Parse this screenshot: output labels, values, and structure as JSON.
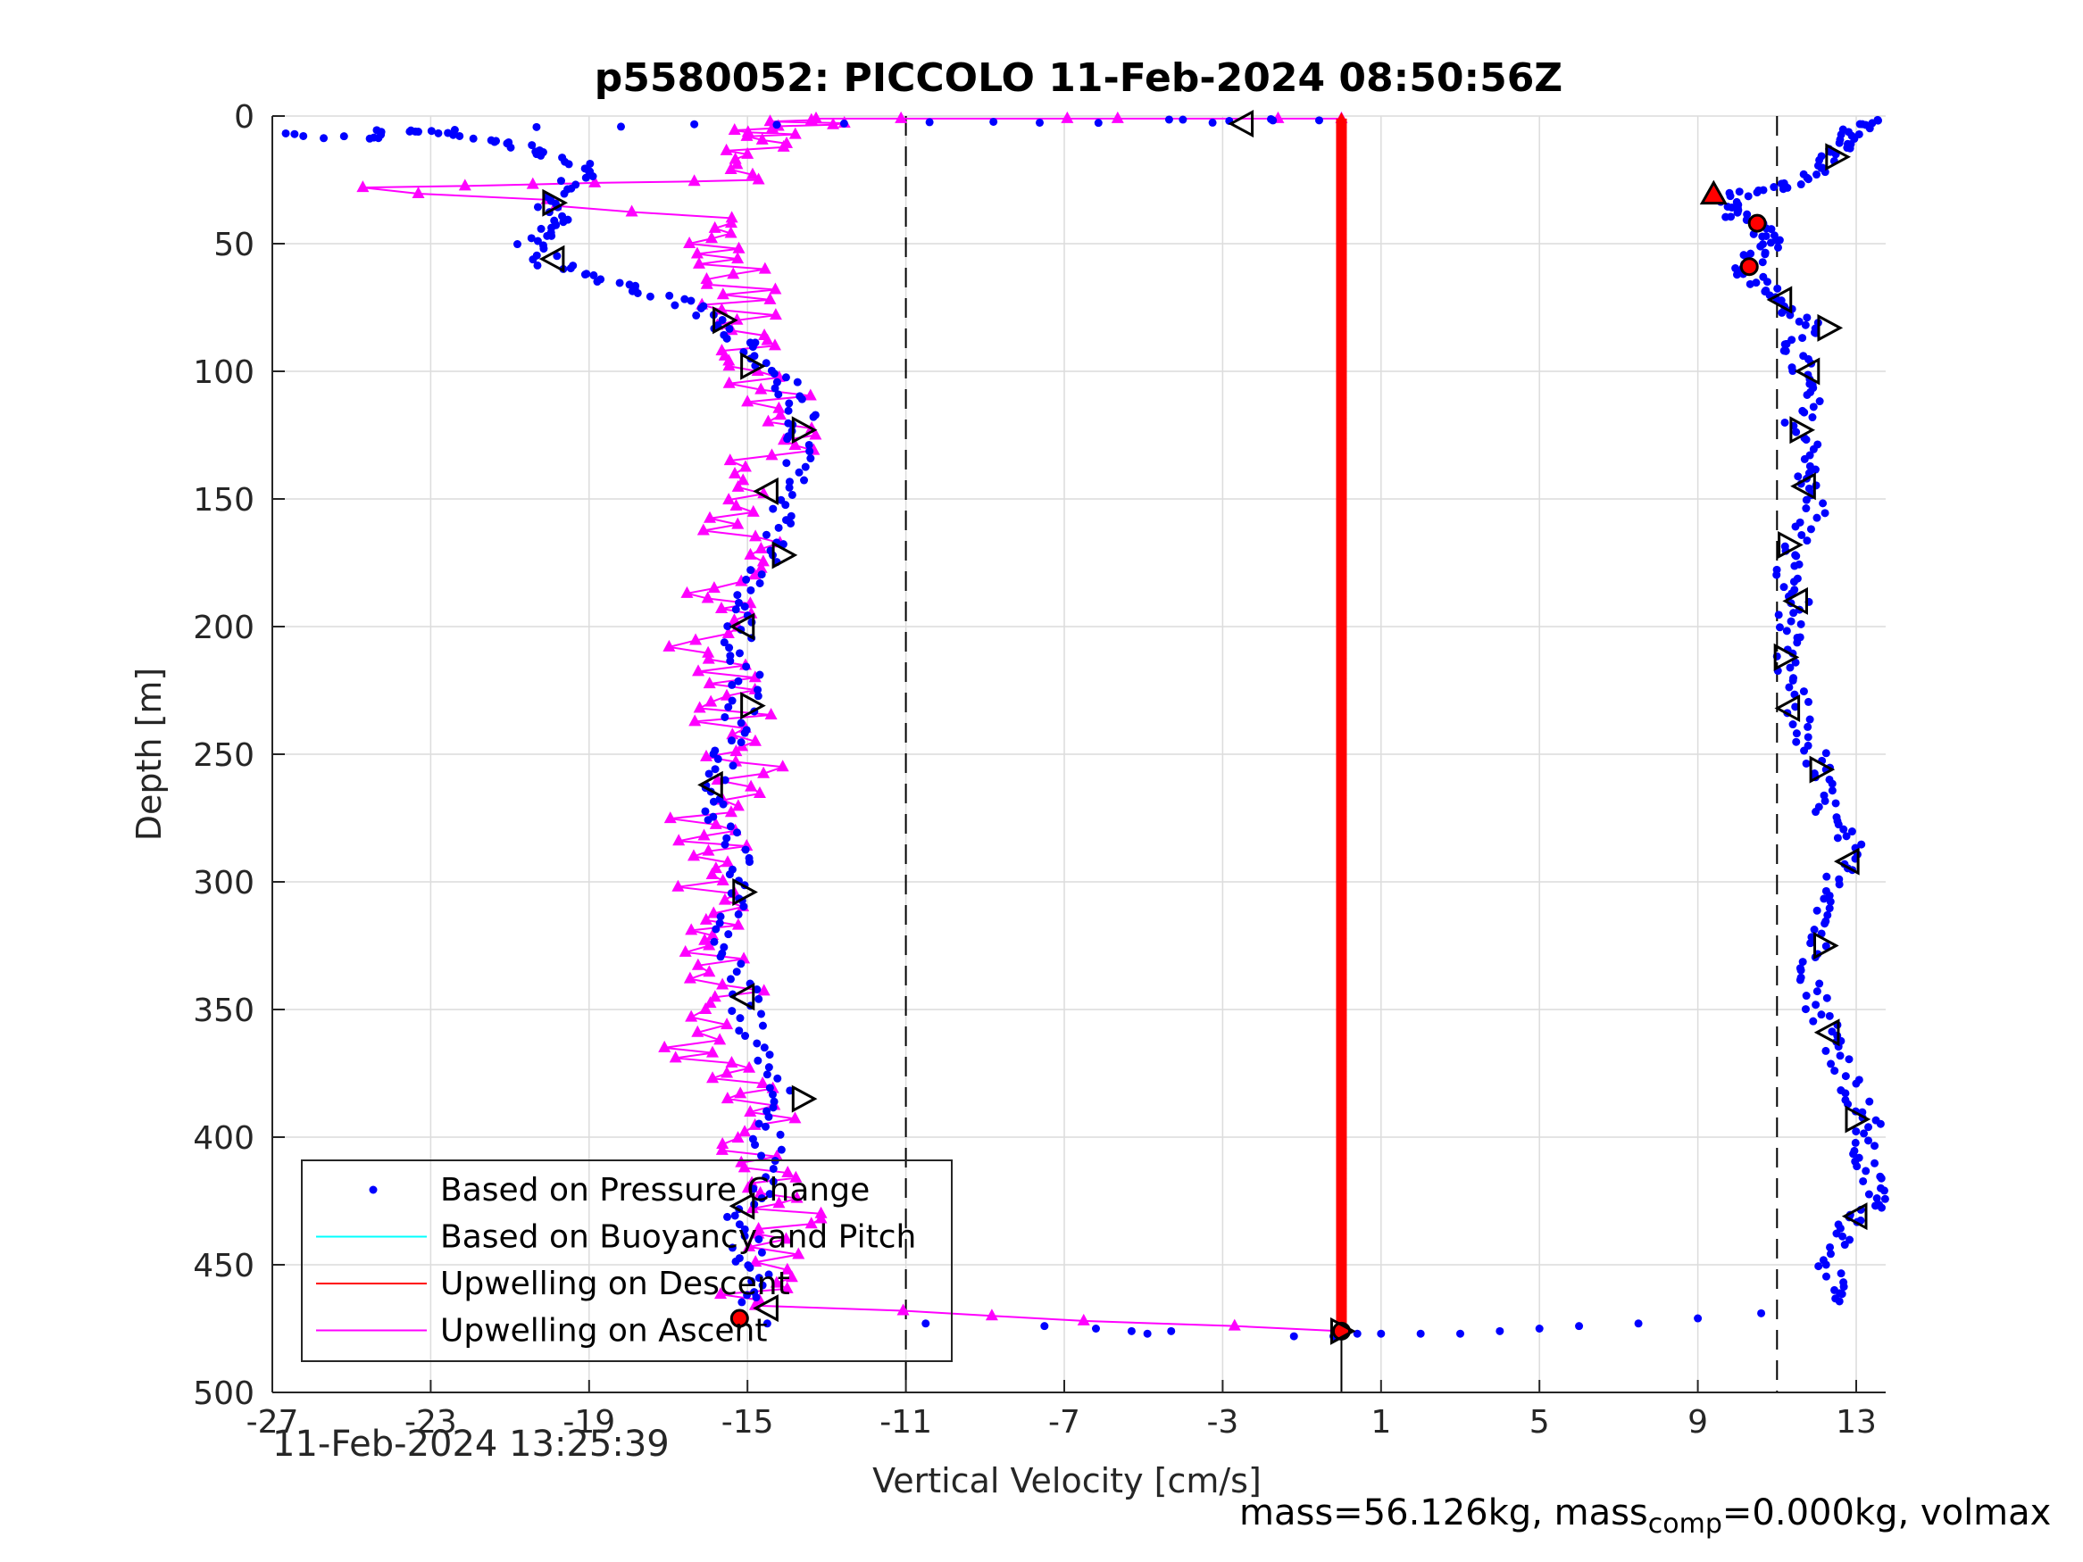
{
  "chart_data": {
    "type": "scatter",
    "title": "p5580052: PICCOLO 11-Feb-2024 08:50:56Z",
    "xlabel": "Vertical Velocity [cm/s]",
    "ylabel": "Depth [m]",
    "xlim": [
      -27,
      14
    ],
    "ylim": [
      0,
      500
    ],
    "y_reversed": true,
    "xticks": [
      -27,
      -23,
      -19,
      -15,
      -11,
      -7,
      -3,
      1,
      5,
      9,
      13
    ],
    "yticks": [
      0,
      50,
      100,
      150,
      200,
      250,
      300,
      350,
      400,
      450,
      500
    ],
    "grid": true,
    "legend_location": "bottom-left",
    "legend": [
      {
        "label": "Based on Pressure Change",
        "color": "#0000ff",
        "marker": "dot"
      },
      {
        "label": "Based on Buoyancy and Pitch",
        "color": "#00ffff",
        "marker": "line"
      },
      {
        "label": "Upwelling on Descent",
        "color": "#ff0000",
        "marker": "line"
      },
      {
        "label": "Upwelling on Ascent",
        "color": "#ff00ff",
        "marker": "line"
      }
    ],
    "reference_lines_x": [
      -11,
      11
    ],
    "series": [
      {
        "name": "Based on Pressure Change",
        "color": "#0000ff",
        "descent_trace": [
          [
            13.4,
            1
          ],
          [
            13.0,
            5
          ],
          [
            12.7,
            10
          ],
          [
            12.5,
            15
          ],
          [
            12.0,
            22
          ],
          [
            11.3,
            27
          ],
          [
            10.2,
            30
          ],
          [
            9.6,
            35
          ],
          [
            10.1,
            40
          ],
          [
            10.7,
            45
          ],
          [
            11.0,
            50
          ],
          [
            10.5,
            55
          ],
          [
            10.2,
            62
          ],
          [
            10.8,
            68
          ],
          [
            11.2,
            75
          ],
          [
            11.8,
            82
          ],
          [
            11.4,
            90
          ],
          [
            11.6,
            100
          ],
          [
            11.8,
            110
          ],
          [
            11.5,
            122
          ],
          [
            12.0,
            135
          ],
          [
            11.7,
            145
          ],
          [
            12.0,
            155
          ],
          [
            11.4,
            168
          ],
          [
            11.2,
            180
          ],
          [
            11.5,
            190
          ],
          [
            11.3,
            200
          ],
          [
            11.1,
            212
          ],
          [
            11.4,
            225
          ],
          [
            11.6,
            240
          ],
          [
            12.0,
            252
          ],
          [
            12.1,
            262
          ],
          [
            12.3,
            275
          ],
          [
            12.8,
            285
          ],
          [
            12.6,
            298
          ],
          [
            12.4,
            310
          ],
          [
            12.0,
            322
          ],
          [
            11.9,
            335
          ],
          [
            12.0,
            348
          ],
          [
            12.4,
            360
          ],
          [
            12.7,
            372
          ],
          [
            13.0,
            385
          ],
          [
            13.3,
            395
          ],
          [
            13.1,
            405
          ],
          [
            13.3,
            415
          ],
          [
            13.6,
            425
          ],
          [
            13.0,
            432
          ],
          [
            12.6,
            442
          ],
          [
            12.3,
            455
          ],
          [
            12.5,
            465
          ]
        ],
        "turnaround_bottom": [
          [
            10.6,
            469
          ],
          [
            9.0,
            471
          ],
          [
            7.5,
            473
          ],
          [
            6.0,
            474
          ],
          [
            5.0,
            475
          ],
          [
            4.0,
            476
          ],
          [
            3.0,
            477
          ],
          [
            2.0,
            477
          ],
          [
            1.0,
            477
          ],
          [
            0.4,
            477
          ],
          [
            -0.2,
            478
          ],
          [
            -1.2,
            478
          ],
          [
            -4.3,
            476
          ],
          [
            -4.9,
            477
          ],
          [
            -5.3,
            476
          ],
          [
            -6.2,
            475
          ],
          [
            -7.5,
            474
          ],
          [
            -10.5,
            473
          ],
          [
            -14.5,
            473
          ],
          [
            -15.2,
            471
          ]
        ],
        "ascent_trace": [
          [
            -15.2,
            465
          ],
          [
            -14.8,
            455
          ],
          [
            -15.0,
            445
          ],
          [
            -15.2,
            432
          ],
          [
            -14.5,
            420
          ],
          [
            -14.4,
            405
          ],
          [
            -14.6,
            392
          ],
          [
            -14.2,
            380
          ],
          [
            -14.8,
            365
          ],
          [
            -15.0,
            352
          ],
          [
            -15.1,
            340
          ],
          [
            -15.5,
            325
          ],
          [
            -15.3,
            312
          ],
          [
            -15.2,
            300
          ],
          [
            -15.4,
            285
          ],
          [
            -15.9,
            272
          ],
          [
            -16.0,
            262
          ],
          [
            -15.6,
            250
          ],
          [
            -15.3,
            238
          ],
          [
            -15.0,
            225
          ],
          [
            -15.1,
            212
          ],
          [
            -15.3,
            200
          ],
          [
            -15.0,
            188
          ],
          [
            -14.5,
            175
          ],
          [
            -14.3,
            162
          ],
          [
            -14.0,
            150
          ],
          [
            -13.8,
            138
          ],
          [
            -13.6,
            125
          ],
          [
            -13.6,
            115
          ],
          [
            -14.0,
            105
          ],
          [
            -14.5,
            97
          ],
          [
            -15.2,
            88
          ],
          [
            -15.9,
            80
          ],
          [
            -16.8,
            72
          ],
          [
            -17.8,
            68
          ],
          [
            -18.8,
            63
          ],
          [
            -20.0,
            58
          ],
          [
            -20.5,
            50
          ],
          [
            -20.2,
            45
          ],
          [
            -19.8,
            40
          ],
          [
            -20.1,
            33
          ],
          [
            -19.6,
            27
          ],
          [
            -19.0,
            20
          ],
          [
            -20.0,
            15
          ],
          [
            -21.0,
            11
          ],
          [
            -22.3,
            8
          ],
          [
            -23.4,
            5
          ],
          [
            -24.3,
            9
          ],
          [
            -26.9,
            7
          ],
          [
            -14.0,
            3
          ],
          [
            -4.3,
            2
          ],
          [
            -0.9,
            2
          ]
        ]
      },
      {
        "name": "Upwelling on Descent",
        "color": "#ff0000",
        "x": 0.0,
        "depth_range": [
          1,
          476
        ]
      },
      {
        "name": "Upwelling on Ascent",
        "color": "#ff00ff",
        "trace": [
          [
            0.0,
            476
          ],
          [
            -15.2,
            466
          ],
          [
            -14.6,
            455
          ],
          [
            -14.2,
            440
          ],
          [
            -13.9,
            430
          ],
          [
            -14.5,
            420
          ],
          [
            -15.0,
            410
          ],
          [
            -14.8,
            398
          ],
          [
            -14.9,
            385
          ],
          [
            -15.6,
            375
          ],
          [
            -16.2,
            365
          ],
          [
            -15.8,
            350
          ],
          [
            -15.4,
            338
          ],
          [
            -15.5,
            325
          ],
          [
            -16.0,
            315
          ],
          [
            -15.7,
            302
          ],
          [
            -15.9,
            290
          ],
          [
            -16.2,
            280
          ],
          [
            -15.4,
            268
          ],
          [
            -15.2,
            255
          ],
          [
            -15.6,
            245
          ],
          [
            -15.3,
            232
          ],
          [
            -15.6,
            220
          ],
          [
            -15.9,
            208
          ],
          [
            -16.0,
            195
          ],
          [
            -15.3,
            185
          ],
          [
            -14.9,
            172
          ],
          [
            -15.4,
            160
          ],
          [
            -15.0,
            148
          ],
          [
            -14.6,
            135
          ],
          [
            -14.0,
            125
          ],
          [
            -14.2,
            112
          ],
          [
            -14.5,
            100
          ],
          [
            -14.9,
            90
          ],
          [
            -15.2,
            80
          ],
          [
            -15.3,
            70
          ],
          [
            -15.6,
            60
          ],
          [
            -16.0,
            50
          ],
          [
            -15.8,
            40
          ],
          [
            -23.9,
            28
          ],
          [
            -15.0,
            25
          ],
          [
            -15.2,
            15
          ],
          [
            -14.8,
            8
          ],
          [
            -14.0,
            4
          ],
          [
            -13.0,
            1
          ],
          [
            0.0,
            1
          ]
        ]
      }
    ],
    "direction_markers": [
      {
        "x": -2.5,
        "y": 3,
        "dir": "left"
      },
      {
        "x": -19.9,
        "y": 34,
        "dir": "right"
      },
      {
        "x": -19.9,
        "y": 56,
        "dir": "left"
      },
      {
        "x": -15.6,
        "y": 80,
        "dir": "right"
      },
      {
        "x": -14.9,
        "y": 98,
        "dir": "right"
      },
      {
        "x": -13.6,
        "y": 123,
        "dir": "right"
      },
      {
        "x": -14.5,
        "y": 147,
        "dir": "left"
      },
      {
        "x": -14.1,
        "y": 172,
        "dir": "right"
      },
      {
        "x": -15.1,
        "y": 200,
        "dir": "left"
      },
      {
        "x": -14.9,
        "y": 231,
        "dir": "right"
      },
      {
        "x": -15.9,
        "y": 262,
        "dir": "left"
      },
      {
        "x": -15.1,
        "y": 304,
        "dir": "right"
      },
      {
        "x": -15.1,
        "y": 345,
        "dir": "left"
      },
      {
        "x": -13.6,
        "y": 385,
        "dir": "right"
      },
      {
        "x": -15.1,
        "y": 427,
        "dir": "left"
      },
      {
        "x": -14.5,
        "y": 467,
        "dir": "left"
      },
      {
        "x": 12.5,
        "y": 16,
        "dir": "right"
      },
      {
        "x": 11.1,
        "y": 72,
        "dir": "left"
      },
      {
        "x": 12.3,
        "y": 83,
        "dir": "right"
      },
      {
        "x": 11.8,
        "y": 100,
        "dir": "left"
      },
      {
        "x": 11.6,
        "y": 123,
        "dir": "right"
      },
      {
        "x": 11.7,
        "y": 145,
        "dir": "left"
      },
      {
        "x": 11.3,
        "y": 168,
        "dir": "right"
      },
      {
        "x": 11.5,
        "y": 190,
        "dir": "left"
      },
      {
        "x": 11.2,
        "y": 212,
        "dir": "right"
      },
      {
        "x": 11.3,
        "y": 232,
        "dir": "left"
      },
      {
        "x": 12.1,
        "y": 256,
        "dir": "right"
      },
      {
        "x": 12.8,
        "y": 292,
        "dir": "left"
      },
      {
        "x": 12.2,
        "y": 325,
        "dir": "right"
      },
      {
        "x": 12.3,
        "y": 359,
        "dir": "left"
      },
      {
        "x": 13.0,
        "y": 393,
        "dir": "right"
      },
      {
        "x": 13.0,
        "y": 431,
        "dir": "left"
      },
      {
        "x": 0.0,
        "y": 476,
        "dir": "right"
      }
    ],
    "highlight_markers": [
      {
        "x": 9.4,
        "y": 31,
        "shape": "triangle"
      },
      {
        "x": 10.5,
        "y": 42,
        "shape": "circle"
      },
      {
        "x": 10.3,
        "y": 59,
        "shape": "circle"
      },
      {
        "x": -15.2,
        "y": 471,
        "shape": "circle"
      },
      {
        "x": 0.0,
        "y": 476,
        "shape": "circle"
      }
    ],
    "footer_timestamp": "11-Feb-2024 13:25:39",
    "footer_mass_prefix": "mass=56.126kg, mass",
    "footer_mass_sub": "comp",
    "footer_mass_suffix": "=0.000kg, volmax"
  }
}
